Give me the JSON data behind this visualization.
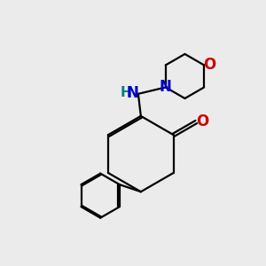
{
  "bg_color": "#ebebeb",
  "bond_color": "#000000",
  "N_color": "#0000cc",
  "O_color": "#cc0000",
  "H_color": "#008080",
  "line_width": 1.6,
  "font_size_atom": 11,
  "fig_size": [
    3.0,
    3.0
  ],
  "dpi": 100,
  "xlim": [
    0,
    1
  ],
  "ylim": [
    0,
    1
  ]
}
